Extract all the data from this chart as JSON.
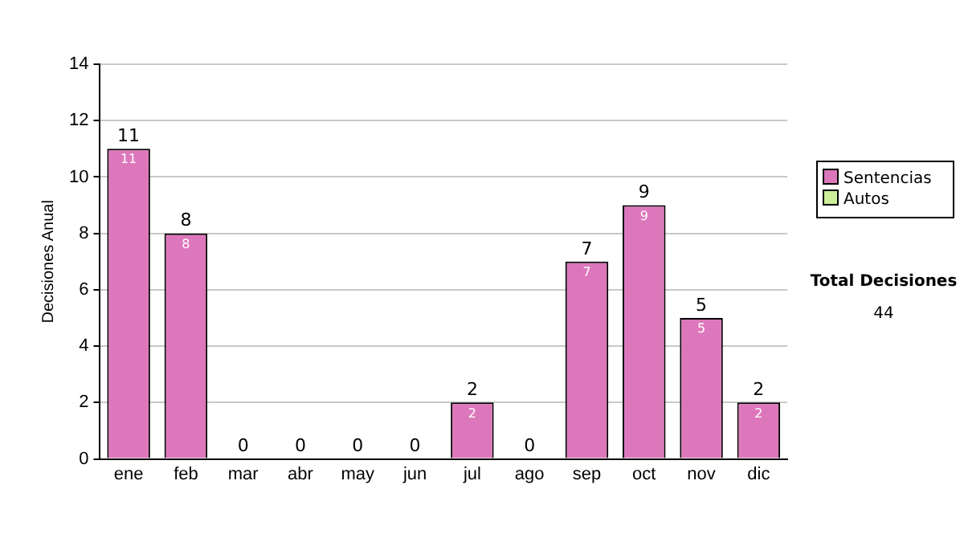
{
  "chart_data": {
    "type": "bar",
    "ylabel": "Decisiones Anual",
    "categories": [
      "ene",
      "feb",
      "mar",
      "abr",
      "may",
      "jun",
      "jul",
      "ago",
      "sep",
      "oct",
      "nov",
      "dic"
    ],
    "stacked": true,
    "series": [
      {
        "name": "Sentencias",
        "color": "#dd77bb",
        "values": [
          11,
          8,
          0,
          0,
          0,
          0,
          2,
          0,
          7,
          9,
          5,
          2
        ],
        "value_labels": [
          "11",
          "8",
          null,
          null,
          null,
          null,
          "2",
          null,
          "7",
          "9",
          "5",
          "2"
        ]
      },
      {
        "name": "Autos",
        "color": "#ccee99",
        "values": [
          0,
          0,
          0,
          0,
          0,
          0,
          0,
          0,
          0,
          0,
          0,
          0
        ]
      }
    ],
    "totals": [
      "11",
      "8",
      "0",
      "0",
      "0",
      "0",
      "2",
      "0",
      "7",
      "9",
      "5",
      "2"
    ],
    "ylim": [
      0,
      14
    ],
    "yticks": [
      0,
      2,
      4,
      6,
      8,
      10,
      12,
      14
    ],
    "grid": "y",
    "legend": "right",
    "annotations": [
      "Total Decisiones",
      "44"
    ]
  }
}
